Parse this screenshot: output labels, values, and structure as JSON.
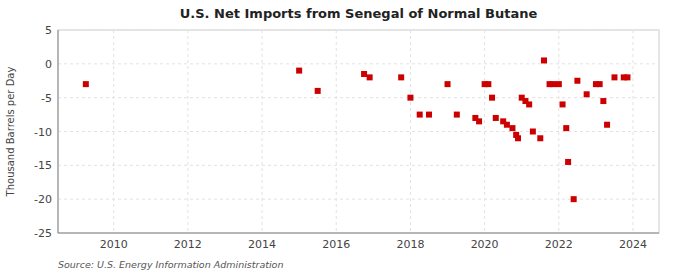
{
  "chart_data": {
    "type": "scatter",
    "title": "U.S. Net Imports from Senegal of Normal Butane",
    "ylabel": "Thousand Barrels per Day",
    "source": "Source: U.S. Energy Information Administration",
    "color": "#cc0000",
    "marker": "square",
    "grid": true,
    "xlim": [
      2008.5,
      2024.7
    ],
    "ylim": [
      -25,
      5
    ],
    "xticks": [
      2010,
      2012,
      2014,
      2016,
      2018,
      2020,
      2022,
      2024
    ],
    "yticks": [
      5,
      0,
      -5,
      -10,
      -15,
      -20,
      -25
    ],
    "x": [
      2009.25,
      2015.0,
      2015.5,
      2016.75,
      2016.9,
      2017.75,
      2018.0,
      2018.25,
      2018.5,
      2019.0,
      2019.25,
      2019.75,
      2019.85,
      2020.0,
      2020.1,
      2020.2,
      2020.3,
      2020.5,
      2020.6,
      2020.75,
      2020.85,
      2020.9,
      2021.0,
      2021.1,
      2021.2,
      2021.3,
      2021.5,
      2021.6,
      2021.75,
      2021.85,
      2022.0,
      2022.1,
      2022.2,
      2022.25,
      2022.4,
      2022.5,
      2022.75,
      2023.0,
      2023.1,
      2023.2,
      2023.3,
      2023.5,
      2023.75,
      2023.85
    ],
    "values": [
      -3,
      -1,
      -4,
      -1.5,
      -2,
      -2,
      -5,
      -7.5,
      -7.5,
      -3,
      -7.5,
      -8,
      -8.5,
      -3,
      -3,
      -5,
      -8,
      -8.5,
      -9,
      -9.5,
      -10.5,
      -11,
      -5,
      -5.5,
      -6,
      -10,
      -11,
      0.5,
      -3,
      -3,
      -3,
      -6,
      -9.5,
      -14.5,
      -20,
      -2.5,
      -4.5,
      -3,
      -3,
      -5.5,
      -9,
      -2,
      -2,
      -2
    ]
  }
}
